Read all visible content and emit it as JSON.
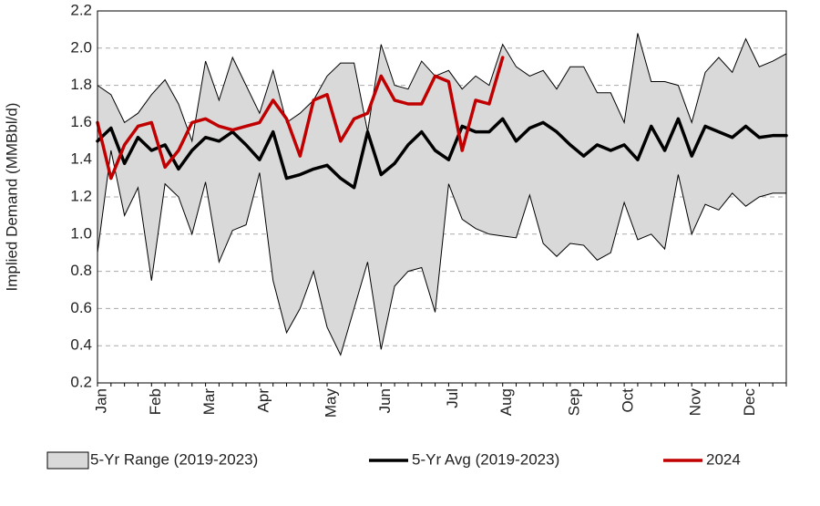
{
  "chart_data": {
    "type": "line",
    "y_label": "Implied Demand (MMBbl/d)",
    "categories": [
      "Jan",
      null,
      null,
      null,
      "Feb",
      null,
      null,
      null,
      "Mar",
      null,
      null,
      null,
      "Apr",
      null,
      null,
      null,
      null,
      "May",
      null,
      null,
      null,
      "Jun",
      null,
      null,
      null,
      null,
      "Jul",
      null,
      null,
      null,
      "Aug",
      null,
      null,
      null,
      null,
      "Sep",
      null,
      null,
      null,
      "Oct",
      null,
      null,
      null,
      null,
      "Nov",
      null,
      null,
      null,
      "Dec",
      null,
      null,
      null
    ],
    "series": [
      {
        "name": "5-Yr Range (2019-2023)",
        "color": "#d9d9d9",
        "high": [
          1.8,
          1.75,
          1.6,
          1.65,
          1.75,
          1.83,
          1.7,
          1.5,
          1.93,
          1.72,
          1.95,
          1.8,
          1.65,
          1.88,
          1.6,
          1.65,
          1.72,
          1.85,
          1.92,
          1.92,
          1.55,
          2.02,
          1.8,
          1.78,
          1.93,
          1.85,
          1.88,
          1.78,
          1.85,
          1.8,
          2.02,
          1.9,
          1.85,
          1.88,
          1.78,
          1.9,
          1.9,
          1.76,
          1.76,
          1.6,
          2.08,
          1.82,
          1.82,
          1.8,
          1.6,
          1.87,
          1.95,
          1.87,
          2.05,
          1.9,
          1.93,
          1.97
        ],
        "low": [
          0.9,
          1.45,
          1.1,
          1.25,
          0.75,
          1.27,
          1.2,
          1.0,
          1.28,
          0.85,
          1.02,
          1.05,
          1.33,
          0.75,
          0.47,
          0.6,
          0.8,
          0.5,
          0.35,
          0.6,
          0.85,
          0.38,
          0.72,
          0.8,
          0.82,
          0.58,
          1.27,
          1.08,
          1.03,
          1.0,
          0.99,
          0.98,
          1.21,
          0.95,
          0.88,
          0.95,
          0.94,
          0.86,
          0.9,
          1.17,
          0.97,
          1.0,
          0.92,
          1.32,
          1.0,
          1.16,
          1.13,
          1.22,
          1.15,
          1.2,
          1.22,
          1.22
        ]
      },
      {
        "name": "5-Yr Avg (2019-2023)",
        "color": "#000000",
        "values": [
          1.5,
          1.57,
          1.38,
          1.52,
          1.45,
          1.48,
          1.35,
          1.45,
          1.52,
          1.5,
          1.55,
          1.48,
          1.4,
          1.55,
          1.3,
          1.32,
          1.35,
          1.37,
          1.3,
          1.25,
          1.55,
          1.32,
          1.38,
          1.48,
          1.55,
          1.45,
          1.4,
          1.58,
          1.55,
          1.55,
          1.62,
          1.5,
          1.57,
          1.6,
          1.55,
          1.48,
          1.42,
          1.48,
          1.45,
          1.48,
          1.4,
          1.58,
          1.45,
          1.62,
          1.42,
          1.58,
          1.55,
          1.52,
          1.58,
          1.52,
          1.53,
          1.53
        ]
      },
      {
        "name": "2024",
        "color": "#c00000",
        "values": [
          1.6,
          1.3,
          1.48,
          1.58,
          1.6,
          1.36,
          1.45,
          1.6,
          1.62,
          1.58,
          1.56,
          1.58,
          1.6,
          1.72,
          1.62,
          1.42,
          1.72,
          1.75,
          1.5,
          1.62,
          1.65,
          1.85,
          1.72,
          1.7,
          1.7,
          1.85,
          1.82,
          1.45,
          1.72,
          1.7,
          1.95,
          null,
          null,
          null,
          null,
          null,
          null,
          null,
          null,
          null,
          null,
          null,
          null,
          null,
          null,
          null,
          null,
          null,
          null,
          null,
          null,
          null
        ]
      }
    ],
    "ylim": [
      0.2,
      2.2
    ],
    "yticks": [
      0.2,
      0.4,
      0.6,
      0.8,
      {
        "value": 1,
        "label": "1.0"
      },
      1.2,
      1.4,
      1.6,
      1.8,
      {
        "value": 2,
        "label": "2.0"
      },
      2.2
    ],
    "grid": true,
    "legend": "bottom"
  }
}
